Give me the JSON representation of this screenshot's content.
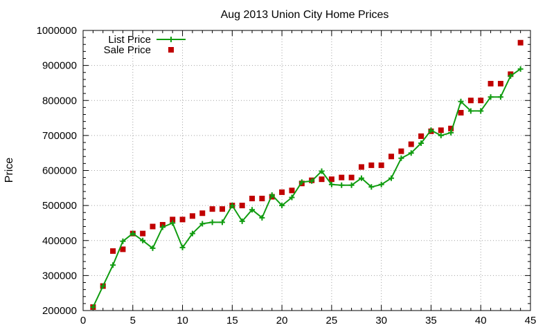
{
  "chart_data": {
    "type": "line",
    "title": "Aug 2013 Union City Home Prices",
    "xlabel": "",
    "ylabel": "Price",
    "xlim": [
      0,
      45
    ],
    "ylim": [
      200000,
      1000000
    ],
    "xticks": [
      0,
      5,
      10,
      15,
      20,
      25,
      30,
      35,
      40,
      45
    ],
    "yticks": [
      200000,
      300000,
      400000,
      500000,
      600000,
      700000,
      800000,
      900000,
      1000000
    ],
    "grid": true,
    "legend_position": "top-left",
    "series": [
      {
        "name": "List Price",
        "style": "line+plus",
        "color": "#109c10",
        "x": [
          1,
          2,
          3,
          4,
          5,
          6,
          7,
          8,
          9,
          10,
          11,
          12,
          13,
          14,
          15,
          16,
          17,
          18,
          19,
          20,
          21,
          22,
          23,
          24,
          25,
          26,
          27,
          28,
          29,
          30,
          31,
          32,
          33,
          34,
          35,
          36,
          37,
          38,
          39,
          40,
          41,
          42,
          43,
          44
        ],
        "y": [
          210000,
          270000,
          330000,
          398000,
          420000,
          400000,
          378000,
          438000,
          450000,
          380000,
          420000,
          448000,
          452000,
          452000,
          500000,
          455000,
          488000,
          465000,
          530000,
          500000,
          523000,
          567000,
          570000,
          598000,
          560000,
          558000,
          558000,
          578000,
          553000,
          560000,
          578000,
          635000,
          650000,
          678000,
          715000,
          700000,
          708000,
          797000,
          770000,
          770000,
          810000,
          810000,
          870000,
          890000
        ]
      },
      {
        "name": "Sale Price",
        "style": "square",
        "color": "#c00000",
        "x": [
          1,
          2,
          3,
          4,
          5,
          6,
          7,
          8,
          9,
          10,
          11,
          12,
          13,
          14,
          15,
          16,
          17,
          18,
          19,
          20,
          21,
          22,
          23,
          24,
          25,
          26,
          27,
          28,
          29,
          30,
          31,
          32,
          33,
          34,
          35,
          36,
          37,
          38,
          39,
          40,
          41,
          42,
          43,
          44
        ],
        "y": [
          210000,
          270000,
          370000,
          375000,
          420000,
          420000,
          440000,
          445000,
          460000,
          460000,
          470000,
          478000,
          490000,
          490000,
          500000,
          500000,
          520000,
          520000,
          525000,
          538000,
          543000,
          563000,
          572000,
          575000,
          575000,
          580000,
          580000,
          610000,
          615000,
          615000,
          640000,
          655000,
          675000,
          698000,
          712000,
          715000,
          720000,
          765000,
          800000,
          800000,
          848000,
          848000,
          875000,
          965000
        ]
      }
    ]
  }
}
